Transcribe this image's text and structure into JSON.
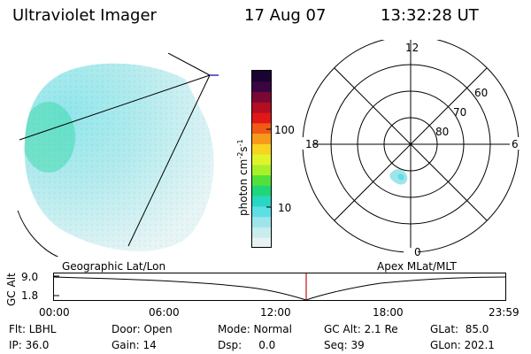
{
  "header": {
    "instrument": "Ultraviolet Imager",
    "date": "17 Aug 07",
    "time": "13:32:28 UT"
  },
  "colorbar": {
    "unit_label": "photon cm",
    "unit_sup1": "-2",
    "unit_mid": "s",
    "unit_sup2": "-1",
    "tick_high": "100",
    "tick_low": "10",
    "colors": [
      "#e8f2f4",
      "#c9ecef",
      "#9ee5e9",
      "#5ddfe6",
      "#29d6c4",
      "#1fd67a",
      "#53e03b",
      "#a9f02b",
      "#e0f529",
      "#f8d322",
      "#f69a1a",
      "#f05a14",
      "#e01818",
      "#b30e22",
      "#7a0832",
      "#3a0540",
      "#1a0333"
    ]
  },
  "map_labels": {
    "left": "Geographic Lat/Lon",
    "right": "Apex MLat/MLT"
  },
  "polar": {
    "mlt_top": "12",
    "mlt_bottom": "0",
    "mlt_left": "18",
    "mlt_right": "6",
    "lat_60": "60",
    "lat_70": "70",
    "lat_80": "80"
  },
  "timeline": {
    "ylabel": "GC Alt",
    "y_ticks": [
      "9.0",
      "1.8"
    ],
    "x_ticks": [
      "00:00",
      "06:00",
      "12:00",
      "18:00",
      "23:59"
    ],
    "current_time_marker": "13:32:28"
  },
  "footer": {
    "row1": [
      "Flt: LBHL",
      "Door: Open",
      "Mode: Normal",
      "GC Alt: 2.1 Re",
      "GLat:  85.0"
    ],
    "row2": [
      "IP: 36.0",
      "Gain: 14",
      "Dsp:     0.0",
      "Seq: 39",
      "GLon: 202.1"
    ]
  }
}
